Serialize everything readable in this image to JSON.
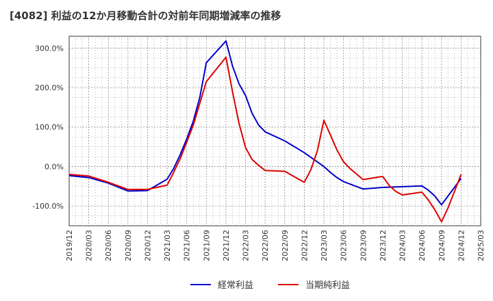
{
  "chart_data": {
    "type": "line",
    "title": "[4082]  利益の12か月移動合計の対前年同期増減率の推移",
    "xlabel": "",
    "ylabel": "",
    "x_ticks": [
      "2019/12",
      "2020/03",
      "2020/06",
      "2020/09",
      "2020/12",
      "2021/03",
      "2021/06",
      "2021/09",
      "2021/12",
      "2022/03",
      "2022/06",
      "2022/09",
      "2022/12",
      "2023/03",
      "2023/06",
      "2023/09",
      "2023/12",
      "2024/03",
      "2024/06",
      "2024/09",
      "2024/12",
      "2025/03"
    ],
    "y_ticks": [
      -100,
      0,
      100,
      200,
      300
    ],
    "y_tick_labels": [
      "-100.0%",
      "0.0%",
      "100.0%",
      "200.0%",
      "300.0%"
    ],
    "xlim": [
      "2019/12",
      "2025/03"
    ],
    "ylim": [
      -150,
      330
    ],
    "grid": true,
    "legend_position": "bottom",
    "series": [
      {
        "name": "経常利益",
        "color": "#0000cc",
        "points": [
          [
            "2019/12",
            -23
          ],
          [
            "2020/03",
            -28
          ],
          [
            "2020/06",
            -42
          ],
          [
            "2020/09",
            -62
          ],
          [
            "2020/12",
            -61
          ],
          [
            "2021/03",
            -32
          ],
          [
            "2021/04",
            -5
          ],
          [
            "2021/05",
            30
          ],
          [
            "2021/06",
            70
          ],
          [
            "2021/07",
            115
          ],
          [
            "2021/08",
            175
          ],
          [
            "2021/09",
            263
          ],
          [
            "2021/12",
            318
          ],
          [
            "2022/01",
            255
          ],
          [
            "2022/02",
            210
          ],
          [
            "2022/03",
            180
          ],
          [
            "2022/04",
            135
          ],
          [
            "2022/05",
            105
          ],
          [
            "2022/06",
            88
          ],
          [
            "2022/09",
            65
          ],
          [
            "2022/12",
            35
          ],
          [
            "2023/03",
            0
          ],
          [
            "2023/04",
            -15
          ],
          [
            "2023/05",
            -28
          ],
          [
            "2023/06",
            -38
          ],
          [
            "2023/09",
            -57
          ],
          [
            "2023/12",
            -53
          ],
          [
            "2024/03",
            -51
          ],
          [
            "2024/06",
            -49
          ],
          [
            "2024/07",
            -60
          ],
          [
            "2024/08",
            -75
          ],
          [
            "2024/09",
            -97
          ],
          [
            "2024/12",
            -30
          ]
        ]
      },
      {
        "name": "当期純利益",
        "color": "#dd0000",
        "points": [
          [
            "2019/12",
            -20
          ],
          [
            "2020/03",
            -24
          ],
          [
            "2020/06",
            -40
          ],
          [
            "2020/09",
            -58
          ],
          [
            "2020/12",
            -58
          ],
          [
            "2021/03",
            -47
          ],
          [
            "2021/04",
            -15
          ],
          [
            "2021/05",
            20
          ],
          [
            "2021/06",
            62
          ],
          [
            "2021/07",
            105
          ],
          [
            "2021/08",
            160
          ],
          [
            "2021/09",
            215
          ],
          [
            "2021/12",
            277
          ],
          [
            "2022/01",
            190
          ],
          [
            "2022/02",
            110
          ],
          [
            "2022/03",
            48
          ],
          [
            "2022/04",
            18
          ],
          [
            "2022/05",
            3
          ],
          [
            "2022/06",
            -10
          ],
          [
            "2022/09",
            -12
          ],
          [
            "2022/12",
            -40
          ],
          [
            "2023/01",
            -8
          ],
          [
            "2023/02",
            40
          ],
          [
            "2023/03",
            117
          ],
          [
            "2023/04",
            80
          ],
          [
            "2023/05",
            42
          ],
          [
            "2023/06",
            12
          ],
          [
            "2023/07",
            -5
          ],
          [
            "2023/09",
            -33
          ],
          [
            "2023/12",
            -25
          ],
          [
            "2024/01",
            -48
          ],
          [
            "2024/02",
            -63
          ],
          [
            "2024/03",
            -72
          ],
          [
            "2024/06",
            -65
          ],
          [
            "2024/07",
            -85
          ],
          [
            "2024/08",
            -110
          ],
          [
            "2024/09",
            -140
          ],
          [
            "2024/10",
            -105
          ],
          [
            "2024/12",
            -20
          ]
        ]
      }
    ]
  }
}
